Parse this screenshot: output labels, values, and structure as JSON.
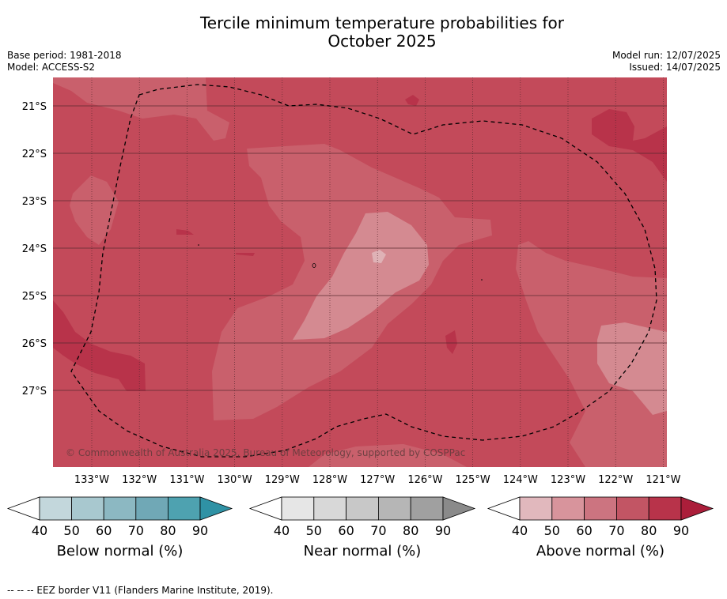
{
  "header": {
    "title_line1": "Tercile minimum temperature probabilities for",
    "title_line2": "October 2025",
    "base_period": "Base period: 1981-2018",
    "model": "Model: ACCESS-S2",
    "model_run": "Model run: 12/07/2025",
    "issued": "Issued: 14/07/2025"
  },
  "map": {
    "lat_labels": [
      "21°S",
      "22°S",
      "23°S",
      "24°S",
      "25°S",
      "26°S",
      "27°S"
    ],
    "lon_labels": [
      "133°W",
      "132°W",
      "131°W",
      "130°W",
      "129°W",
      "128°W",
      "127°W",
      "126°W",
      "125°W",
      "124°W",
      "123°W",
      "122°W",
      "121°W"
    ],
    "copyright": "© Commonwealth of Australia 2025, Bureau of Meteorology, supported by COSPPac",
    "colors": {
      "above_70": "#c34a5a",
      "above_80": "#b8334a",
      "above_60": "#c9606c",
      "above_50": "#d48a91",
      "above_40": "#dfb2b6"
    }
  },
  "colorbars": [
    {
      "label": "Below normal (%)",
      "ticks": [
        "40",
        "50",
        "60",
        "70",
        "80",
        "90"
      ],
      "colors": [
        "#c3d7dc",
        "#a8c8cf",
        "#8cb8c2",
        "#70a8b6",
        "#4ea2b0",
        "#2f92a5"
      ]
    },
    {
      "label": "Near normal (%)",
      "ticks": [
        "40",
        "50",
        "60",
        "70",
        "80",
        "90"
      ],
      "colors": [
        "#e6e6e6",
        "#d8d8d8",
        "#c8c8c8",
        "#b6b6b6",
        "#a0a0a0",
        "#8a8a8a"
      ]
    },
    {
      "label": "Above normal (%)",
      "ticks": [
        "40",
        "50",
        "60",
        "70",
        "80",
        "90"
      ],
      "colors": [
        "#e1b8bd",
        "#d8949c",
        "#cc7480",
        "#c25564",
        "#b8334a",
        "#ab1e3a"
      ]
    }
  ],
  "footnote": "--  --  -- EEZ border V11 (Flanders Marine Institute, 2019)."
}
